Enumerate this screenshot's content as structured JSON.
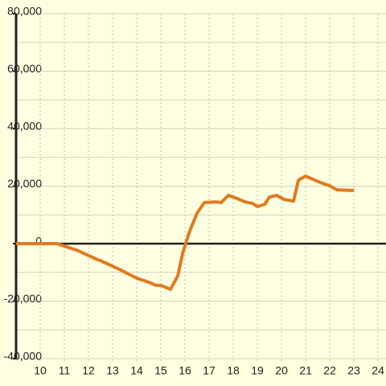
{
  "chart_data": {
    "type": "line",
    "x": [
      9,
      10.7,
      11.3,
      11.5,
      12.3,
      12.5,
      13.3,
      13.6,
      14.0,
      14.5,
      14.8,
      15.0,
      15.4,
      15.7,
      15.9,
      16.2,
      16.5,
      16.8,
      17.3,
      17.5,
      17.8,
      18.1,
      18.5,
      18.8,
      19.0,
      19.3,
      19.5,
      19.8,
      20.1,
      20.5,
      20.7,
      21.0,
      21.3,
      21.6,
      22.0,
      22.3,
      23.0
    ],
    "series": [
      {
        "color": "#e07b20",
        "values": [
          0,
          0,
          -1700,
          -2200,
          -5300,
          -5900,
          -9000,
          -10300,
          -12000,
          -13400,
          -14500,
          -14500,
          -15900,
          -11200,
          -3400,
          4500,
          10600,
          14300,
          14500,
          14300,
          16800,
          15900,
          14500,
          14000,
          12900,
          13700,
          16200,
          16800,
          15400,
          14800,
          22100,
          23500,
          22400,
          21300,
          20100,
          18700,
          18500
        ]
      }
    ],
    "xlim": [
      9,
      24.33
    ],
    "xticks": [
      10,
      11,
      12,
      13,
      14,
      15,
      16,
      17,
      18,
      19,
      20,
      21,
      22,
      23,
      24
    ],
    "ylim": [
      -40000,
      80000
    ],
    "yticks": [
      {
        "value": 80000,
        "label": "80,000"
      },
      {
        "value": 60000,
        "label": "60,000"
      },
      {
        "value": 40000,
        "label": "40,000"
      },
      {
        "value": 20000,
        "label": "20,000"
      },
      0,
      {
        "value": -20000,
        "label": "-20,000"
      },
      {
        "value": -40000,
        "label": "-40,000"
      }
    ],
    "y_minor_ticks": [
      70000,
      50000,
      30000,
      10000,
      -10000,
      -30000
    ],
    "grid": true
  }
}
